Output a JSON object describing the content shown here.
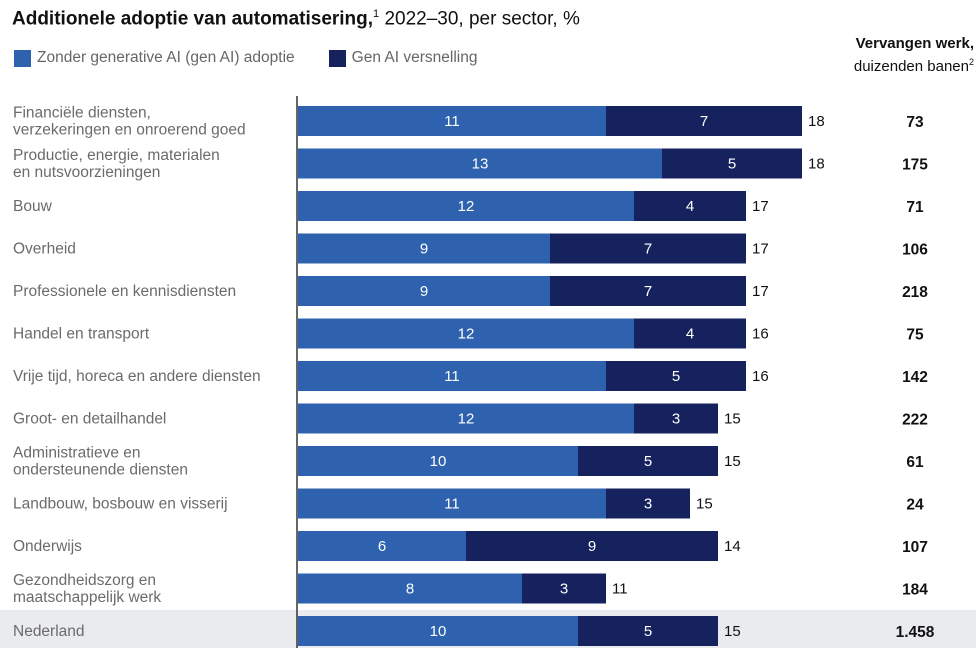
{
  "title": {
    "bold": "Additionele adoptie van automatisering,",
    "sup": "1",
    "rest": " 2022–30, per sector, %"
  },
  "legend": {
    "series1": "Zonder generative AI (gen AI) adoptie",
    "series2": "Gen AI versnelling"
  },
  "replaced_header": {
    "line1": "Vervangen werk,",
    "line2": "duizenden banen",
    "sup": "2"
  },
  "colors": {
    "series1": "#2e62ae",
    "series2": "#15225e",
    "highlight_row": "#e9ebee",
    "axis": "#333333"
  },
  "chart_data": {
    "type": "bar",
    "orientation": "horizontal",
    "stacked": true,
    "categories": [
      [
        "Financiële diensten,",
        "verzekeringen en onroerend goed"
      ],
      [
        "Productie, energie, materialen",
        "en nutsvoorzieningen"
      ],
      [
        "Bouw"
      ],
      [
        "Overheid"
      ],
      [
        "Professionele en kennisdiensten"
      ],
      [
        "Handel en transport"
      ],
      [
        "Vrije tijd, horeca en andere diensten"
      ],
      [
        "Groot- en detailhandel"
      ],
      [
        "Administratieve en",
        "ondersteunende diensten"
      ],
      [
        "Landbouw, bosbouw en visserij"
      ],
      [
        "Onderwijs"
      ],
      [
        "Gezondheidszorg en",
        "maatschappelijk werk"
      ],
      [
        "Nederland"
      ]
    ],
    "series": [
      {
        "name": "Zonder generative AI (gen AI) adoptie",
        "values": [
          11,
          13,
          12,
          9,
          9,
          12,
          11,
          12,
          10,
          11,
          6,
          8,
          10
        ]
      },
      {
        "name": "Gen AI versnelling",
        "values": [
          7,
          5,
          4,
          7,
          7,
          4,
          5,
          3,
          5,
          3,
          9,
          3,
          5
        ]
      }
    ],
    "totals": [
      18,
      18,
      17,
      17,
      17,
      16,
      16,
      15,
      15,
      15,
      14,
      11,
      15
    ],
    "replaced_jobs": [
      "73",
      "175",
      "71",
      "106",
      "218",
      "75",
      "142",
      "222",
      "61",
      "24",
      "107",
      "184",
      "1.458"
    ],
    "highlight_category": "Nederland",
    "xlim": [
      0,
      18
    ]
  }
}
